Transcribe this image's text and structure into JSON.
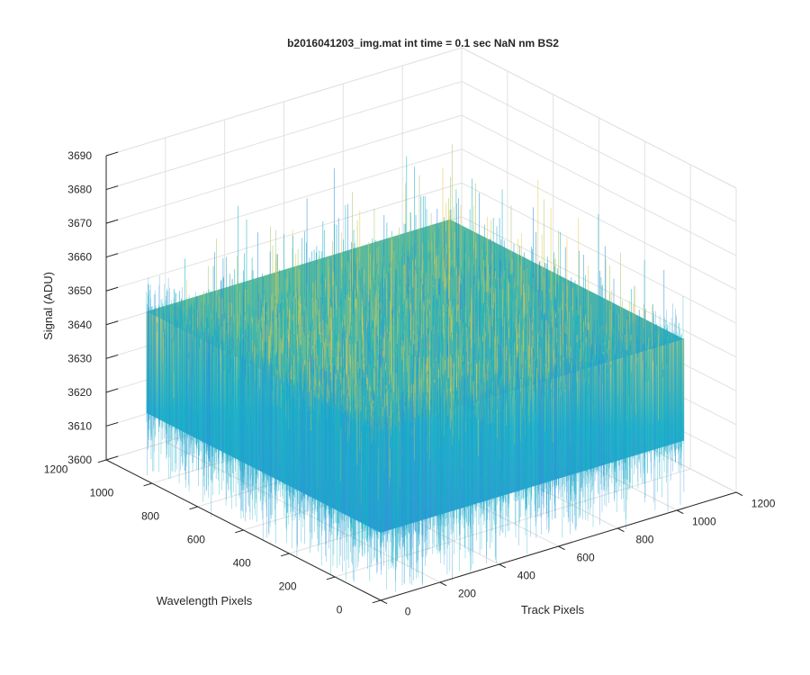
{
  "chart_data": {
    "type": "surface",
    "title": "b2016041203_img.mat int time = 0.1 sec  NaN nm BS2",
    "xlabel": "Track Pixels",
    "ylabel": "Wavelength Pixels",
    "zlabel": "Signal (ADU)",
    "xlim": [
      0,
      1200
    ],
    "ylim": [
      0,
      1200
    ],
    "zlim": [
      3600,
      3690
    ],
    "x_ticks": [
      "0",
      "200",
      "400",
      "600",
      "800",
      "1000",
      "1200"
    ],
    "y_ticks": [
      "0",
      "200",
      "400",
      "600",
      "800",
      "1000",
      "1200"
    ],
    "z_ticks": [
      "3600",
      "3610",
      "3620",
      "3630",
      "3640",
      "3650",
      "3660",
      "3670",
      "3680",
      "3690"
    ],
    "data_extent": {
      "x": [
        0,
        1024
      ],
      "y": [
        0,
        1024
      ]
    },
    "signal_range": {
      "typical_min": 3620,
      "typical_max": 3650,
      "mean": 3635,
      "extreme_min": 3600,
      "extreme_max": 3690
    },
    "grid": true,
    "colormap": "parula",
    "colors": {
      "low": "#2f8fd8",
      "mid": "#14b2c4",
      "high": "#a8c66a",
      "top": "#e8c84a"
    }
  }
}
